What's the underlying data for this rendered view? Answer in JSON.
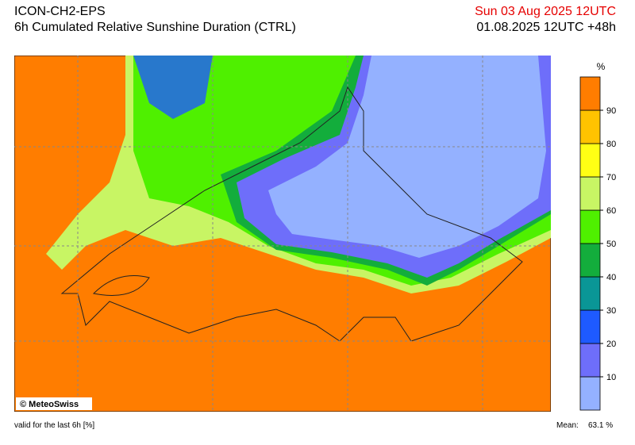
{
  "header": {
    "model": "ICON-CH2-EPS",
    "title": "6h Cumulated Relative Sunshine Duration (CTRL)",
    "valid_date": "Sun 03 Aug 2025 12UTC",
    "run": "01.08.2025 12UTC +48h"
  },
  "legend": {
    "unit": "%",
    "ticks": [
      10,
      20,
      30,
      40,
      50,
      60,
      70,
      80,
      90
    ],
    "colors": [
      "#94b1ff",
      "#6e6efa",
      "#1e5aff",
      "#0a9696",
      "#13ad3c",
      "#4ff000",
      "#c8f564",
      "#ffff14",
      "#ffc300",
      "#ff7d00"
    ]
  },
  "credit": "© MeteoSwiss",
  "footer": {
    "note": "valid for the last 6h [%]",
    "mean_label": "Mean:",
    "mean_value": "63.1 %"
  }
}
